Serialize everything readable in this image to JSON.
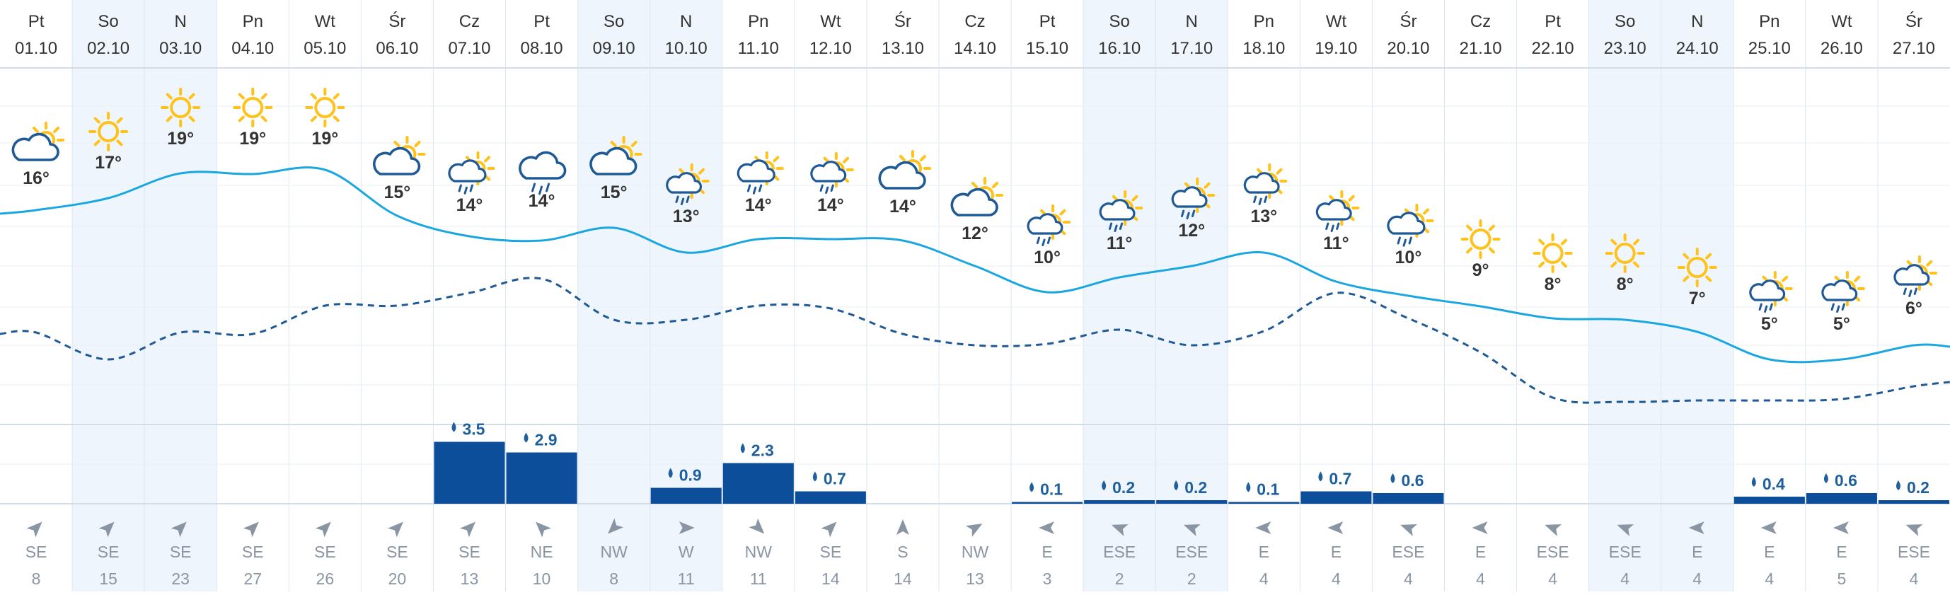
{
  "colors": {
    "weekend_bg": "#eef5fc",
    "grid": "#dbe6f1",
    "text": "#333333",
    "day_temp_line": "#1aa7e0",
    "night_temp_line": "#1f5a96",
    "precip_bar": "#0d4e9a",
    "precip_label": "#1f5f9e",
    "wind_text": "#8a95a3",
    "sun": "#ffc21a",
    "cloud": "#1f5a96"
  },
  "forecast": {
    "days": [
      {
        "dow": "Pt",
        "date": "01.10",
        "weekend": false,
        "icon": "partly-cloudy-icon",
        "temp": "16°",
        "precip": null,
        "wind_dir": "SE",
        "wind_speed": "8",
        "wind_arrow": "arrow-icon",
        "wind_angle": -45
      },
      {
        "dow": "So",
        "date": "02.10",
        "weekend": true,
        "icon": "sun-icon",
        "temp": "17°",
        "precip": null,
        "wind_dir": "SE",
        "wind_speed": "15",
        "wind_arrow": "arrow-icon",
        "wind_angle": -45
      },
      {
        "dow": "N",
        "date": "03.10",
        "weekend": true,
        "icon": "sun-icon",
        "temp": "19°",
        "precip": null,
        "wind_dir": "SE",
        "wind_speed": "23",
        "wind_arrow": "arrow-icon",
        "wind_angle": -45
      },
      {
        "dow": "Pn",
        "date": "04.10",
        "weekend": false,
        "icon": "sun-icon",
        "temp": "19°",
        "precip": null,
        "wind_dir": "SE",
        "wind_speed": "27",
        "wind_arrow": "arrow-icon",
        "wind_angle": -45
      },
      {
        "dow": "Wt",
        "date": "05.10",
        "weekend": false,
        "icon": "sun-icon",
        "temp": "19°",
        "precip": null,
        "wind_dir": "SE",
        "wind_speed": "26",
        "wind_arrow": "arrow-icon",
        "wind_angle": -45
      },
      {
        "dow": "Śr",
        "date": "06.10",
        "weekend": false,
        "icon": "partly-cloudy-icon",
        "temp": "15°",
        "precip": null,
        "wind_dir": "SE",
        "wind_speed": "20",
        "wind_arrow": "arrow-icon",
        "wind_angle": -45
      },
      {
        "dow": "Cz",
        "date": "07.10",
        "weekend": false,
        "icon": "partly-cloudy-rain-icon",
        "temp": "14°",
        "precip": "3.5",
        "precip_val": 3.5,
        "wind_dir": "SE",
        "wind_speed": "13",
        "wind_arrow": "arrow-icon",
        "wind_angle": -45
      },
      {
        "dow": "Pt",
        "date": "08.10",
        "weekend": false,
        "icon": "rain-cloud-icon",
        "temp": "14°",
        "precip": "2.9",
        "precip_val": 2.9,
        "wind_dir": "NE",
        "wind_speed": "10",
        "wind_arrow": "arrow-icon",
        "wind_angle": -135
      },
      {
        "dow": "So",
        "date": "09.10",
        "weekend": true,
        "icon": "partly-cloudy-icon",
        "temp": "15°",
        "precip": null,
        "wind_dir": "NW",
        "wind_speed": "8",
        "wind_arrow": "arrow-icon",
        "wind_angle": 135
      },
      {
        "dow": "N",
        "date": "10.10",
        "weekend": true,
        "icon": "sun-rain-icon",
        "temp": "13°",
        "precip": "0.9",
        "precip_val": 0.9,
        "wind_dir": "W",
        "wind_speed": "11",
        "wind_arrow": "arrow-icon",
        "wind_angle": 0
      },
      {
        "dow": "Pn",
        "date": "11.10",
        "weekend": false,
        "icon": "partly-cloudy-rain-icon",
        "temp": "14°",
        "precip": "2.3",
        "precip_val": 2.3,
        "wind_dir": "NW",
        "wind_speed": "11",
        "wind_arrow": "arrow-icon",
        "wind_angle": 45
      },
      {
        "dow": "Wt",
        "date": "12.10",
        "weekend": false,
        "icon": "sun-rain-icon",
        "temp": "14°",
        "precip": "0.7",
        "precip_val": 0.7,
        "wind_dir": "SE",
        "wind_speed": "14",
        "wind_arrow": "arrow-icon",
        "wind_angle": -45
      },
      {
        "dow": "Śr",
        "date": "13.10",
        "weekend": false,
        "icon": "partly-cloudy-icon",
        "temp": "14°",
        "precip": null,
        "wind_dir": "S",
        "wind_speed": "14",
        "wind_arrow": "arrow-icon",
        "wind_angle": -90
      },
      {
        "dow": "Cz",
        "date": "14.10",
        "weekend": false,
        "icon": "partly-cloudy-icon",
        "temp": "12°",
        "precip": null,
        "wind_dir": "NW",
        "wind_speed": "13",
        "wind_arrow": "arrow-icon",
        "wind_angle": -30
      },
      {
        "dow": "Pt",
        "date": "15.10",
        "weekend": false,
        "icon": "sun-rain-icon",
        "temp": "10°",
        "precip": "0.1",
        "precip_val": 0.1,
        "wind_dir": "E",
        "wind_speed": "3",
        "wind_arrow": "arrow-icon",
        "wind_angle": 180
      },
      {
        "dow": "So",
        "date": "16.10",
        "weekend": true,
        "icon": "sun-rain-icon",
        "temp": "11°",
        "precip": "0.2",
        "precip_val": 0.2,
        "wind_dir": "ESE",
        "wind_speed": "2",
        "wind_arrow": "arrow-icon",
        "wind_angle": -160
      },
      {
        "dow": "N",
        "date": "17.10",
        "weekend": true,
        "icon": "sun-rain-icon",
        "temp": "12°",
        "precip": "0.2",
        "precip_val": 0.2,
        "wind_dir": "ESE",
        "wind_speed": "2",
        "wind_arrow": "arrow-icon",
        "wind_angle": -160
      },
      {
        "dow": "Pn",
        "date": "18.10",
        "weekend": false,
        "icon": "sun-rain-icon",
        "temp": "13°",
        "precip": "0.1",
        "precip_val": 0.1,
        "wind_dir": "E",
        "wind_speed": "4",
        "wind_arrow": "arrow-icon",
        "wind_angle": 180
      },
      {
        "dow": "Wt",
        "date": "19.10",
        "weekend": false,
        "icon": "sun-rain-icon",
        "temp": "11°",
        "precip": "0.7",
        "precip_val": 0.7,
        "wind_dir": "E",
        "wind_speed": "4",
        "wind_arrow": "arrow-icon",
        "wind_angle": 180
      },
      {
        "dow": "Śr",
        "date": "20.10",
        "weekend": false,
        "icon": "partly-cloudy-rain-icon",
        "temp": "10°",
        "precip": "0.6",
        "precip_val": 0.6,
        "wind_dir": "ESE",
        "wind_speed": "4",
        "wind_arrow": "arrow-icon",
        "wind_angle": -160
      },
      {
        "dow": "Cz",
        "date": "21.10",
        "weekend": false,
        "icon": "sun-icon",
        "temp": "9°",
        "precip": null,
        "wind_dir": "E",
        "wind_speed": "4",
        "wind_arrow": "arrow-icon",
        "wind_angle": 180
      },
      {
        "dow": "Pt",
        "date": "22.10",
        "weekend": false,
        "icon": "sun-icon",
        "temp": "8°",
        "precip": null,
        "wind_dir": "ESE",
        "wind_speed": "4",
        "wind_arrow": "arrow-icon",
        "wind_angle": -160
      },
      {
        "dow": "So",
        "date": "23.10",
        "weekend": true,
        "icon": "sun-icon",
        "temp": "8°",
        "precip": null,
        "wind_dir": "ESE",
        "wind_speed": "4",
        "wind_arrow": "arrow-icon",
        "wind_angle": -160
      },
      {
        "dow": "N",
        "date": "24.10",
        "weekend": true,
        "icon": "sun-icon",
        "temp": "7°",
        "precip": null,
        "wind_dir": "E",
        "wind_speed": "4",
        "wind_arrow": "arrow-icon",
        "wind_angle": 180
      },
      {
        "dow": "Pn",
        "date": "25.10",
        "weekend": false,
        "icon": "sun-rain-icon",
        "temp": "5°",
        "precip": "0.4",
        "precip_val": 0.4,
        "wind_dir": "E",
        "wind_speed": "4",
        "wind_arrow": "arrow-icon",
        "wind_angle": 180
      },
      {
        "dow": "Wt",
        "date": "26.10",
        "weekend": false,
        "icon": "sun-rain-icon",
        "temp": "5°",
        "precip": "0.6",
        "precip_val": 0.6,
        "wind_dir": "E",
        "wind_speed": "5",
        "wind_arrow": "arrow-icon",
        "wind_angle": 180
      },
      {
        "dow": "Śr",
        "date": "27.10",
        "weekend": false,
        "icon": "sun-rain-icon",
        "temp": "6°",
        "precip": "0.2",
        "precip_val": 0.2,
        "wind_dir": "ESE",
        "wind_speed": "4",
        "wind_arrow": "arrow-icon",
        "wind_angle": -160
      }
    ]
  }
}
